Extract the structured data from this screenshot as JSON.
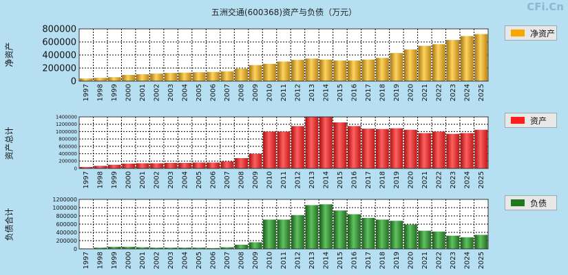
{
  "title": "五洲交通(600368)资产与负债（万元）",
  "watermark": "CFi.Cn",
  "chart_data": [
    {
      "type": "bar",
      "name": "net-assets",
      "ylabel": "净资产",
      "legend": "净资产",
      "color": "#f2a400",
      "ylim": [
        0,
        800000
      ],
      "yticks": [
        0,
        200000,
        400000,
        600000,
        800000
      ],
      "ytick_labels": [
        "0",
        "200000",
        "400000",
        "600000",
        "800000"
      ],
      "categories": [
        "1997",
        "1998",
        "1999",
        "2000",
        "2001",
        "2002",
        "2003",
        "2004",
        "2005",
        "2006",
        "2007",
        "2008",
        "2009",
        "2010",
        "2011",
        "2012",
        "2013",
        "2014",
        "2015",
        "2016",
        "2017",
        "2018",
        "2019",
        "2020",
        "2021",
        "2022",
        "2023",
        "2024",
        "2025"
      ],
      "values": [
        40000,
        50000,
        60000,
        95000,
        105000,
        115000,
        125000,
        130000,
        135000,
        140000,
        150000,
        190000,
        245000,
        265000,
        300000,
        325000,
        345000,
        330000,
        315000,
        315000,
        330000,
        355000,
        430000,
        485000,
        540000,
        565000,
        630000,
        690000,
        720000
      ]
    },
    {
      "type": "bar",
      "name": "total-assets",
      "ylabel": "资产总计",
      "legend": "资产",
      "color": "#ff1e1e",
      "ylim": [
        0,
        1400000
      ],
      "yticks": [
        0,
        200000,
        400000,
        600000,
        800000,
        1000000,
        1200000,
        1400000
      ],
      "ytick_labels": [
        "0",
        "200000",
        "400000",
        "600000",
        "800000",
        "1000000",
        "1200000",
        "1400000"
      ],
      "categories": [
        "1997",
        "1998",
        "1999",
        "2000",
        "2001",
        "2002",
        "2003",
        "2004",
        "2005",
        "2006",
        "2007",
        "2008",
        "2009",
        "2010",
        "2011",
        "2012",
        "2013",
        "2014",
        "2015",
        "2016",
        "2017",
        "2018",
        "2019",
        "2020",
        "2021",
        "2022",
        "2023",
        "2024",
        "2025"
      ],
      "values": [
        40000,
        70000,
        100000,
        130000,
        140000,
        140000,
        150000,
        150000,
        160000,
        160000,
        190000,
        280000,
        400000,
        1000000,
        1000000,
        1150000,
        1400000,
        1400000,
        1250000,
        1150000,
        1080000,
        1070000,
        1090000,
        1050000,
        960000,
        1000000,
        940000,
        960000,
        1050000
      ]
    },
    {
      "type": "bar",
      "name": "liabilities",
      "ylabel": "负债合计",
      "legend": "负债",
      "color": "#2e8b2e",
      "ylim": [
        0,
        1200000
      ],
      "yticks": [
        0,
        200000,
        400000,
        600000,
        800000,
        1000000,
        1200000
      ],
      "ytick_labels": [
        "0",
        "200000",
        "400000",
        "600000",
        "800000",
        "1000000",
        "1200000"
      ],
      "categories": [
        "1997",
        "1998",
        "1999",
        "2000",
        "2001",
        "2002",
        "2003",
        "2004",
        "2005",
        "2006",
        "2007",
        "2008",
        "2009",
        "2010",
        "2011",
        "2012",
        "2013",
        "2014",
        "2015",
        "2016",
        "2017",
        "2018",
        "2019",
        "2020",
        "2021",
        "2022",
        "2023",
        "2024",
        "2025"
      ],
      "values": [
        10000,
        30000,
        50000,
        50000,
        40000,
        30000,
        30000,
        30000,
        30000,
        20000,
        40000,
        100000,
        160000,
        710000,
        710000,
        820000,
        1060000,
        1080000,
        930000,
        840000,
        750000,
        710000,
        680000,
        590000,
        440000,
        420000,
        320000,
        280000,
        340000
      ]
    }
  ]
}
